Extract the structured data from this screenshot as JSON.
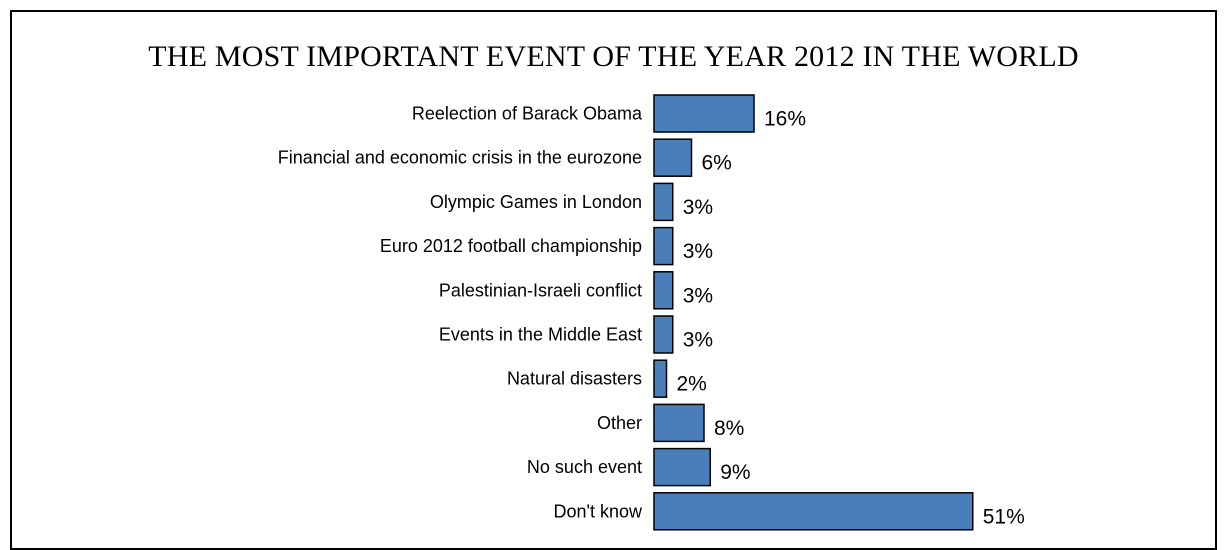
{
  "chart_data": {
    "type": "bar",
    "orientation": "horizontal",
    "title": "THE MOST IMPORTANT EVENT OF THE YEAR 2012 IN THE WORLD",
    "xlabel": "",
    "ylabel": "",
    "categories": [
      "Reelection of Barack Obama",
      "Financial and economic crisis in the eurozone",
      "Olympic Games in London",
      "Euro 2012 football championship",
      "Palestinian-Israeli conflict",
      "Events in the Middle East",
      "Natural disasters",
      "Other",
      "No such event",
      "Don't know"
    ],
    "values": [
      16,
      6,
      3,
      3,
      3,
      3,
      2,
      8,
      9,
      51
    ],
    "value_labels": [
      "16%",
      "6%",
      "3%",
      "3%",
      "3%",
      "3%",
      "2%",
      "8%",
      "9%",
      "51%"
    ],
    "unit": "%",
    "grid": false,
    "legend": "none",
    "bar_color": "#4a7ebb",
    "bar_edge_color": "#000000"
  }
}
